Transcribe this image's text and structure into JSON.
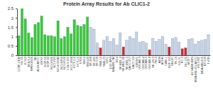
{
  "chart_data": {
    "type": "bar",
    "title": "Protein Array Results for Ab CLIC1-2",
    "categories": [
      "CCRF-CEM",
      "HL-60",
      "K-562",
      "MOLT-4",
      "RPMI-8226",
      "SR",
      "A549/ATCC",
      "EKVX",
      "HOP-62",
      "HOP-92",
      "NCI-H226",
      "NCI-H23",
      "NCI-H322M",
      "NCI-H460",
      "NCI-H522",
      "COLO 205",
      "HCC-2998",
      "HCT-116",
      "HCT-15",
      "HT29",
      "KM12",
      "SW-620",
      "SF-268",
      "SF-295",
      "SF-539",
      "SNB-19",
      "SNB-75",
      "U251",
      "LOX IMVI",
      "MALME-3M",
      "M14",
      "SK-MEL-2",
      "SK-MEL-28",
      "SK-MEL-5",
      "UACC-257",
      "UACC-62",
      "IGROV1",
      "OVCAR-3",
      "OVCAR-4",
      "OVCAR-5",
      "OVCAR-8",
      "SK-OV-3",
      "786-0",
      "A498",
      "ACHN",
      "CAKI-1",
      "RXF 393",
      "SN12C",
      "TK-10",
      "UO-31",
      "PC-3",
      "DU-145",
      "MCF7",
      "NCI/ADR-RES",
      "MDA-MB-231/ATCC",
      "HS 578T",
      "MDA-MB-435",
      "BT-549",
      "T-47D"
    ],
    "values": [
      1.05,
      2.5,
      1.95,
      1.2,
      0.95,
      1.65,
      1.75,
      2.1,
      1.1,
      1.05,
      1.05,
      1.0,
      1.85,
      0.9,
      1.0,
      1.5,
      1.15,
      1.9,
      1.6,
      1.55,
      1.65,
      2.05,
      1.5,
      1.4,
      0.65,
      0.4,
      0.8,
      1.0,
      0.75,
      0.9,
      0.55,
      1.2,
      0.45,
      0.8,
      1.0,
      0.9,
      1.25,
      0.7,
      0.75,
      0.65,
      0.3,
      0.9,
      0.75,
      0.85,
      1.0,
      0.6,
      0.45,
      0.9,
      0.95,
      0.7,
      0.35,
      0.4,
      0.85,
      0.9,
      0.6,
      0.75,
      0.8,
      0.85,
      1.1
    ],
    "colors": [
      "#33cc33",
      "#33cc33",
      "#33cc33",
      "#33cc33",
      "#33cc33",
      "#33cc33",
      "#33cc33",
      "#33cc33",
      "#33cc33",
      "#33cc33",
      "#33cc33",
      "#33cc33",
      "#33cc33",
      "#33cc33",
      "#33cc33",
      "#33cc33",
      "#33cc33",
      "#33cc33",
      "#33cc33",
      "#33cc33",
      "#33cc33",
      "#33cc33",
      "#c5d3e8",
      "#c5d3e8",
      "#c5d3e8",
      "#cc2a2a",
      "#c5d3e8",
      "#c5d3e8",
      "#c5d3e8",
      "#c5d3e8",
      "#c5d3e8",
      "#c5d3e8",
      "#cc2a2a",
      "#c5d3e8",
      "#c5d3e8",
      "#c5d3e8",
      "#c5d3e8",
      "#c5d3e8",
      "#c5d3e8",
      "#c5d3e8",
      "#cc2a2a",
      "#c5d3e8",
      "#c5d3e8",
      "#c5d3e8",
      "#c5d3e8",
      "#c5d3e8",
      "#cc2a2a",
      "#c5d3e8",
      "#c5d3e8",
      "#c5d3e8",
      "#cc2a2a",
      "#cc2a2a",
      "#c5d3e8",
      "#c5d3e8",
      "#c5d3e8",
      "#c5d3e8",
      "#c5d3e8",
      "#c5d3e8",
      "#c5d3e8"
    ],
    "ylim": [
      0,
      2.5
    ],
    "yticks": [
      0,
      0.5,
      1,
      1.5,
      2,
      2.5
    ],
    "grid": false
  }
}
